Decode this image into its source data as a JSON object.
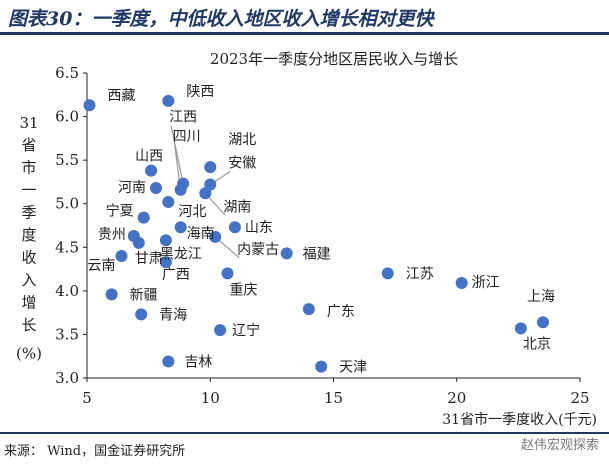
{
  "figure_title": "图表30：一季度，中低收入地区收入增长相对更快",
  "source_note": "来源： Wind，国金证券研究所",
  "watermark": "赵伟宏观探索",
  "colors": {
    "point": "#4472c4",
    "title_blue": "#1f3864",
    "leader": "#9a9a9a"
  },
  "chart_data": {
    "type": "scatter",
    "title": "2023年一季度分地区居民收入与增长",
    "xlabel": "31省市一季度收入(千元)",
    "ylabel": "31省市一季度收入增长(%)",
    "xlim": [
      5,
      25
    ],
    "ylim": [
      3.0,
      6.5
    ],
    "xticks": [
      5,
      10,
      15,
      20,
      25
    ],
    "yticks": [
      3.0,
      3.5,
      4.0,
      4.5,
      5.0,
      5.5,
      6.0,
      6.5
    ],
    "grid": false,
    "points": [
      {
        "name": "西藏",
        "x": 5.1,
        "y": 6.13
      },
      {
        "name": "陕西",
        "x": 8.3,
        "y": 6.18
      },
      {
        "name": "江西",
        "x": 8.9,
        "y": 5.23
      },
      {
        "name": "四川",
        "x": 8.8,
        "y": 5.16
      },
      {
        "name": "湖北",
        "x": 10.0,
        "y": 5.42
      },
      {
        "name": "山西",
        "x": 7.6,
        "y": 5.38
      },
      {
        "name": "安徽",
        "x": 10.0,
        "y": 5.22
      },
      {
        "name": "河南",
        "x": 7.8,
        "y": 5.18
      },
      {
        "name": "河北",
        "x": 8.3,
        "y": 5.02
      },
      {
        "name": "湖南",
        "x": 9.8,
        "y": 5.12
      },
      {
        "name": "宁夏",
        "x": 7.3,
        "y": 4.84
      },
      {
        "name": "海南",
        "x": 8.8,
        "y": 4.73
      },
      {
        "name": "山东",
        "x": 11.0,
        "y": 4.73
      },
      {
        "name": "贵州",
        "x": 6.9,
        "y": 4.63
      },
      {
        "name": "黑龙江",
        "x": 8.2,
        "y": 4.58
      },
      {
        "name": "内蒙古",
        "x": 10.2,
        "y": 4.62
      },
      {
        "name": "甘肃",
        "x": 7.1,
        "y": 4.55
      },
      {
        "name": "福建",
        "x": 13.1,
        "y": 4.43
      },
      {
        "name": "云南",
        "x": 6.4,
        "y": 4.4
      },
      {
        "name": "广西",
        "x": 8.2,
        "y": 4.33
      },
      {
        "name": "江苏",
        "x": 17.2,
        "y": 4.2
      },
      {
        "name": "重庆",
        "x": 10.7,
        "y": 4.2
      },
      {
        "name": "浙江",
        "x": 20.2,
        "y": 4.09
      },
      {
        "name": "新疆",
        "x": 6.0,
        "y": 3.96
      },
      {
        "name": "广东",
        "x": 14.0,
        "y": 3.79
      },
      {
        "name": "青海",
        "x": 7.2,
        "y": 3.73
      },
      {
        "name": "上海",
        "x": 23.5,
        "y": 3.64
      },
      {
        "name": "辽宁",
        "x": 10.4,
        "y": 3.55
      },
      {
        "name": "北京",
        "x": 22.6,
        "y": 3.57
      },
      {
        "name": "吉林",
        "x": 8.3,
        "y": 3.19
      },
      {
        "name": "天津",
        "x": 14.5,
        "y": 3.13
      }
    ]
  }
}
